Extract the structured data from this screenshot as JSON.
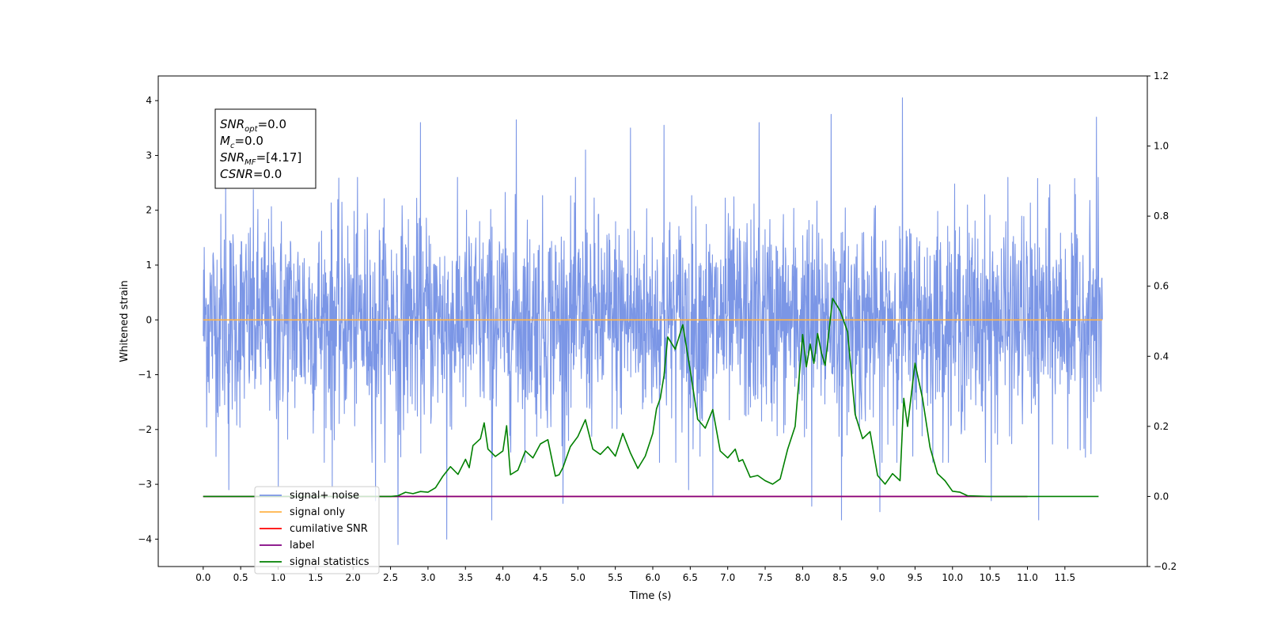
{
  "chart_data": {
    "type": "line",
    "xlabel": "Time (s)",
    "ylabel": "Whitened strain",
    "xlim": [
      -0.6,
      12.6
    ],
    "ylim": [
      -4.5,
      4.45
    ],
    "y2lim": [
      -0.2,
      1.2
    ],
    "x_ticks": [
      "0.0",
      "0.5",
      "1.0",
      "1.5",
      "2.0",
      "2.5",
      "3.0",
      "3.5",
      "4.0",
      "4.5",
      "5.0",
      "5.5",
      "6.0",
      "6.5",
      "7.0",
      "7.5",
      "8.0",
      "8.5",
      "9.0",
      "9.5",
      "10.0",
      "10.5",
      "11.0",
      "11.5"
    ],
    "y_ticks": [
      "4",
      "3",
      "2",
      "1",
      "0",
      "−1",
      "−2",
      "−3",
      "−4"
    ],
    "y2_ticks": [
      "1.2",
      "1.0",
      "0.8",
      "0.6",
      "0.4",
      "0.2",
      "0.0",
      "−0.2"
    ],
    "grid": false,
    "legend_position": "lower-left",
    "annotation_lines": [
      {
        "label": "SNR",
        "sub": "opt",
        "value": "=0.0"
      },
      {
        "label": "M",
        "sub": "c",
        "value": "=0.0"
      },
      {
        "label": "SNR",
        "sub": "MF",
        "value": "=[4.17]"
      },
      {
        "label": "CSNR",
        "sub": "",
        "value": "=0.0"
      }
    ],
    "series": [
      {
        "name": "signal+ noise",
        "color": "#7b96e6",
        "axis": "left",
        "duration": 12.0,
        "noise_std": 0.95,
        "spikes": [
          [
            0.3,
            2.45
          ],
          [
            0.34,
            -3.1
          ],
          [
            1.0,
            -3.05
          ],
          [
            1.72,
            -3.05
          ],
          [
            2.3,
            -3.3
          ],
          [
            2.6,
            -4.1
          ],
          [
            2.9,
            3.6
          ],
          [
            3.25,
            -4.0
          ],
          [
            3.85,
            -3.65
          ],
          [
            4.18,
            3.65
          ],
          [
            4.8,
            -3.35
          ],
          [
            5.1,
            3.1
          ],
          [
            5.7,
            3.5
          ],
          [
            6.15,
            3.55
          ],
          [
            6.48,
            -3.1
          ],
          [
            6.8,
            -3.2
          ],
          [
            7.42,
            3.6
          ],
          [
            8.12,
            -3.4
          ],
          [
            8.38,
            3.75
          ],
          [
            8.52,
            -3.65
          ],
          [
            9.03,
            -3.5
          ],
          [
            9.33,
            4.05
          ],
          [
            10.52,
            -3.3
          ],
          [
            11.15,
            -3.65
          ],
          [
            11.92,
            3.7
          ]
        ]
      },
      {
        "name": "signal only",
        "color": "#ffb347",
        "axis": "left",
        "x": [
          0,
          12
        ],
        "y": [
          0,
          0
        ]
      },
      {
        "name": "cumilative SNR",
        "color": "#ff0000",
        "axis": "right",
        "x": [
          0,
          11.0
        ],
        "y": [
          0,
          0
        ]
      },
      {
        "name": "label",
        "color": "#800080",
        "axis": "right",
        "x": [
          0,
          11.0
        ],
        "y": [
          0,
          0
        ]
      },
      {
        "name": "signal statistics",
        "color": "#008000",
        "axis": "right",
        "x": [
          0,
          0.5,
          1,
          1.5,
          2,
          2.5,
          2.6,
          2.7,
          2.8,
          2.9,
          3.0,
          3.1,
          3.2,
          3.3,
          3.4,
          3.5,
          3.55,
          3.6,
          3.7,
          3.75,
          3.8,
          3.9,
          4.0,
          4.05,
          4.1,
          4.2,
          4.3,
          4.4,
          4.5,
          4.6,
          4.7,
          4.75,
          4.8,
          4.9,
          5.0,
          5.1,
          5.2,
          5.3,
          5.4,
          5.5,
          5.6,
          5.7,
          5.8,
          5.9,
          6.0,
          6.05,
          6.1,
          6.15,
          6.2,
          6.3,
          6.4,
          6.5,
          6.6,
          6.7,
          6.8,
          6.9,
          7.0,
          7.1,
          7.15,
          7.2,
          7.3,
          7.4,
          7.5,
          7.6,
          7.7,
          7.8,
          7.9,
          8.0,
          8.05,
          8.1,
          8.15,
          8.2,
          8.25,
          8.3,
          8.4,
          8.5,
          8.6,
          8.7,
          8.8,
          8.9,
          9.0,
          9.1,
          9.15,
          9.2,
          9.3,
          9.35,
          9.4,
          9.5,
          9.6,
          9.7,
          9.8,
          9.9,
          10.0,
          10.1,
          10.2,
          10.5,
          11.0,
          11.5,
          11.95
        ],
        "y": [
          0,
          0,
          0,
          0,
          0,
          0,
          0.002,
          0.012,
          0.008,
          0.014,
          0.012,
          0.025,
          0.058,
          0.085,
          0.063,
          0.106,
          0.082,
          0.145,
          0.165,
          0.21,
          0.135,
          0.114,
          0.13,
          0.202,
          0.062,
          0.075,
          0.13,
          0.11,
          0.15,
          0.162,
          0.058,
          0.062,
          0.082,
          0.142,
          0.171,
          0.219,
          0.135,
          0.12,
          0.142,
          0.115,
          0.18,
          0.125,
          0.08,
          0.115,
          0.18,
          0.25,
          0.28,
          0.345,
          0.455,
          0.42,
          0.49,
          0.36,
          0.22,
          0.195,
          0.248,
          0.13,
          0.11,
          0.135,
          0.1,
          0.105,
          0.055,
          0.06,
          0.045,
          0.035,
          0.05,
          0.135,
          0.2,
          0.462,
          0.37,
          0.435,
          0.38,
          0.465,
          0.41,
          0.374,
          0.565,
          0.53,
          0.47,
          0.235,
          0.165,
          0.185,
          0.06,
          0.035,
          0.05,
          0.065,
          0.045,
          0.28,
          0.2,
          0.38,
          0.28,
          0.14,
          0.065,
          0.045,
          0.015,
          0.012,
          0.002,
          0,
          0,
          0,
          0
        ]
      }
    ]
  }
}
